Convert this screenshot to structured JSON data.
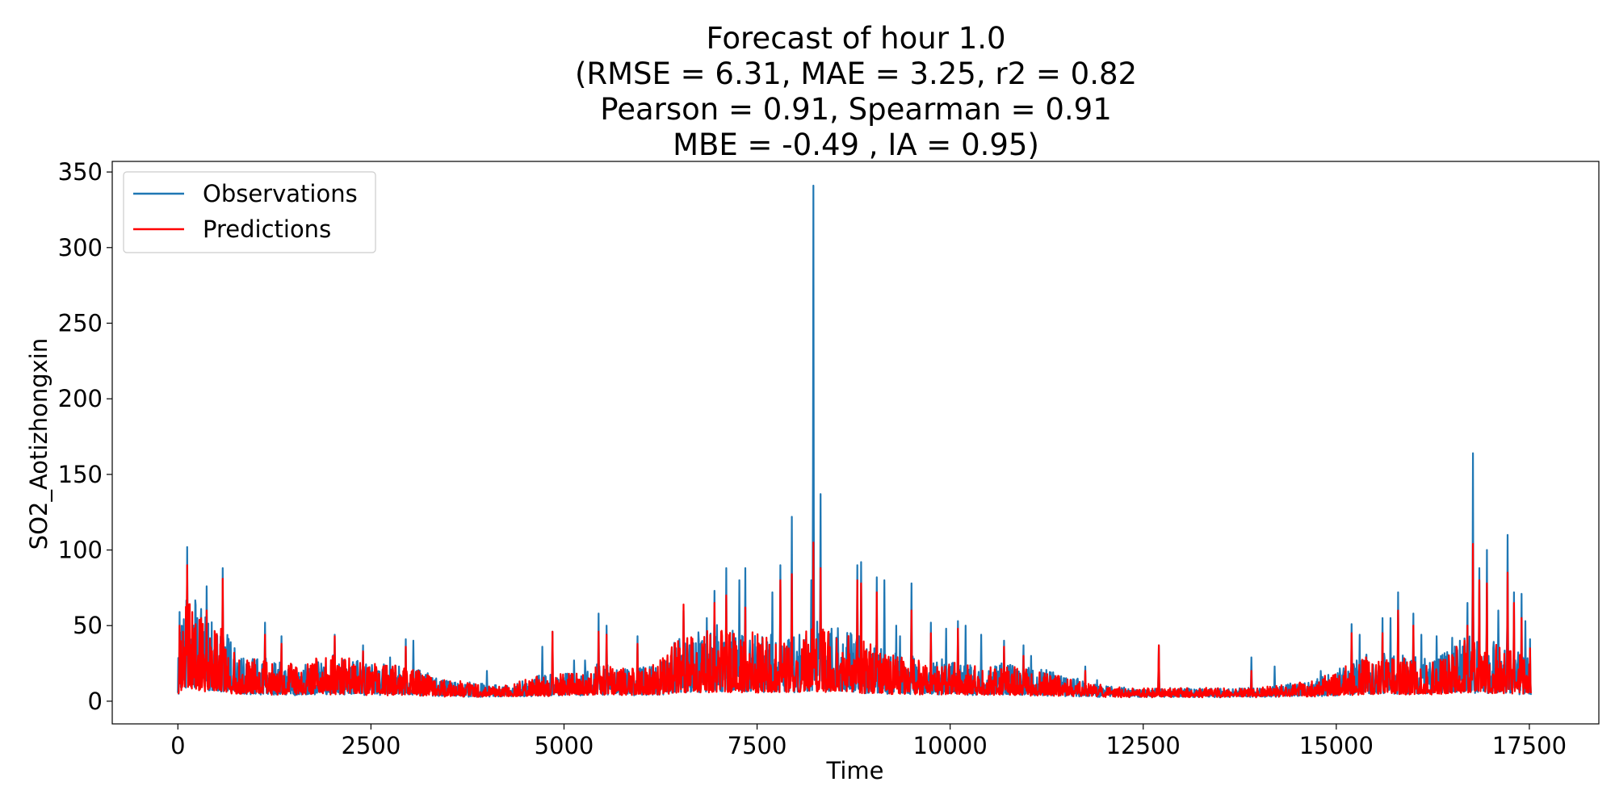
{
  "chart_data": {
    "type": "line",
    "title_lines": [
      "Forecast of hour 1.0",
      "(RMSE = 6.31, MAE = 3.25, r2 = 0.82",
      "Pearson = 0.91, Spearman = 0.91",
      "MBE = -0.49 , IA = 0.95)"
    ],
    "xlabel": "Time",
    "ylabel": "SO2_Aotizhongxin",
    "xlim": [
      -850,
      18400
    ],
    "ylim": [
      -15,
      357
    ],
    "x_ticks": [
      0,
      2500,
      5000,
      7500,
      10000,
      12500,
      15000,
      17500
    ],
    "x_tick_labels": [
      "0",
      "2500",
      "5000",
      "7500",
      "10000",
      "12500",
      "15000",
      "17500"
    ],
    "y_ticks": [
      0,
      50,
      100,
      150,
      200,
      250,
      300,
      350
    ],
    "y_tick_labels": [
      "0",
      "50",
      "100",
      "150",
      "200",
      "250",
      "300",
      "350"
    ],
    "grid": false,
    "legend_position": "top-left",
    "x_range": [
      0,
      17520
    ],
    "series": [
      {
        "name": "Observations",
        "color": "#1f77b4",
        "profile": [
          [
            0,
            15
          ],
          [
            100,
            40
          ],
          [
            400,
            28
          ],
          [
            600,
            25
          ],
          [
            800,
            15
          ],
          [
            1200,
            14
          ],
          [
            1600,
            12
          ],
          [
            2000,
            16
          ],
          [
            2500,
            12
          ],
          [
            3000,
            12
          ],
          [
            3400,
            6
          ],
          [
            3800,
            5
          ],
          [
            4300,
            4
          ],
          [
            4700,
            8
          ],
          [
            5000,
            8
          ],
          [
            5400,
            12
          ],
          [
            5800,
            10
          ],
          [
            6200,
            12
          ],
          [
            6500,
            22
          ],
          [
            7000,
            26
          ],
          [
            7500,
            24
          ],
          [
            8000,
            22
          ],
          [
            8300,
            28
          ],
          [
            8800,
            22
          ],
          [
            9300,
            16
          ],
          [
            9800,
            14
          ],
          [
            10300,
            12
          ],
          [
            10800,
            12
          ],
          [
            11200,
            10
          ],
          [
            11800,
            5
          ],
          [
            12300,
            3
          ],
          [
            12700,
            3
          ],
          [
            13200,
            3
          ],
          [
            13700,
            3
          ],
          [
            14200,
            4
          ],
          [
            14700,
            6
          ],
          [
            15000,
            10
          ],
          [
            15400,
            16
          ],
          [
            15800,
            15
          ],
          [
            16300,
            15
          ],
          [
            16700,
            22
          ],
          [
            17100,
            20
          ],
          [
            17520,
            14
          ]
        ],
        "peaks": [
          [
            20,
            59
          ],
          [
            120,
            102
          ],
          [
            200,
            50
          ],
          [
            250,
            55
          ],
          [
            300,
            61
          ],
          [
            370,
            76
          ],
          [
            580,
            88
          ],
          [
            1130,
            52
          ],
          [
            1340,
            43
          ],
          [
            2030,
            44
          ],
          [
            2400,
            37
          ],
          [
            2750,
            29
          ],
          [
            2950,
            41
          ],
          [
            3050,
            40
          ],
          [
            4000,
            20
          ],
          [
            4720,
            36
          ],
          [
            4850,
            46
          ],
          [
            5130,
            27
          ],
          [
            5270,
            27
          ],
          [
            5450,
            58
          ],
          [
            5550,
            50
          ],
          [
            5950,
            43
          ],
          [
            6250,
            25
          ],
          [
            6550,
            60
          ],
          [
            6850,
            55
          ],
          [
            6950,
            73
          ],
          [
            7100,
            88
          ],
          [
            7270,
            80
          ],
          [
            7350,
            88
          ],
          [
            7700,
            72
          ],
          [
            7800,
            90
          ],
          [
            7950,
            122
          ],
          [
            8050,
            44
          ],
          [
            8200,
            80
          ],
          [
            8230,
            341
          ],
          [
            8320,
            137
          ],
          [
            8500,
            20
          ],
          [
            8800,
            90
          ],
          [
            8850,
            92
          ],
          [
            9050,
            82
          ],
          [
            9150,
            80
          ],
          [
            9300,
            50
          ],
          [
            9350,
            43
          ],
          [
            9500,
            78
          ],
          [
            9750,
            52
          ],
          [
            9950,
            48
          ],
          [
            10100,
            53
          ],
          [
            10200,
            50
          ],
          [
            10400,
            44
          ],
          [
            10700,
            40
          ],
          [
            10950,
            37
          ],
          [
            11050,
            30
          ],
          [
            11400,
            15
          ],
          [
            11650,
            15
          ],
          [
            11750,
            23
          ],
          [
            11900,
            14
          ],
          [
            12700,
            37
          ],
          [
            13100,
            8
          ],
          [
            13900,
            29
          ],
          [
            14200,
            23
          ],
          [
            14800,
            20
          ],
          [
            15200,
            51
          ],
          [
            15300,
            44
          ],
          [
            15600,
            55
          ],
          [
            15700,
            55
          ],
          [
            15800,
            72
          ],
          [
            16000,
            58
          ],
          [
            16100,
            44
          ],
          [
            16300,
            43
          ],
          [
            16500,
            42
          ],
          [
            16600,
            40
          ],
          [
            16700,
            65
          ],
          [
            16770,
            164
          ],
          [
            16850,
            88
          ],
          [
            16950,
            100
          ],
          [
            17100,
            60
          ],
          [
            17220,
            110
          ],
          [
            17300,
            72
          ],
          [
            17400,
            71
          ],
          [
            17450,
            53
          ],
          [
            17510,
            41
          ]
        ]
      },
      {
        "name": "Predictions",
        "color": "#ff0000",
        "profile": [
          [
            0,
            14
          ],
          [
            100,
            38
          ],
          [
            400,
            26
          ],
          [
            600,
            24
          ],
          [
            800,
            14
          ],
          [
            1200,
            13
          ],
          [
            1600,
            12
          ],
          [
            2000,
            15
          ],
          [
            2500,
            12
          ],
          [
            3000,
            11
          ],
          [
            3400,
            6
          ],
          [
            3800,
            5
          ],
          [
            4300,
            4
          ],
          [
            4700,
            8
          ],
          [
            5000,
            8
          ],
          [
            5400,
            12
          ],
          [
            5800,
            10
          ],
          [
            6200,
            12
          ],
          [
            6500,
            21
          ],
          [
            7000,
            25
          ],
          [
            7500,
            23
          ],
          [
            8000,
            21
          ],
          [
            8300,
            26
          ],
          [
            8800,
            21
          ],
          [
            9300,
            15
          ],
          [
            9800,
            13
          ],
          [
            10300,
            12
          ],
          [
            10800,
            11
          ],
          [
            11200,
            9
          ],
          [
            11800,
            5
          ],
          [
            12300,
            3
          ],
          [
            12700,
            3
          ],
          [
            13200,
            3
          ],
          [
            13700,
            3
          ],
          [
            14200,
            4
          ],
          [
            14700,
            6
          ],
          [
            15000,
            10
          ],
          [
            15400,
            15
          ],
          [
            15800,
            14
          ],
          [
            16300,
            14
          ],
          [
            16700,
            21
          ],
          [
            17100,
            19
          ],
          [
            17520,
            13
          ]
        ],
        "peaks": [
          [
            20,
            50
          ],
          [
            120,
            90
          ],
          [
            200,
            45
          ],
          [
            300,
            55
          ],
          [
            370,
            60
          ],
          [
            580,
            81
          ],
          [
            1130,
            44
          ],
          [
            1340,
            38
          ],
          [
            2030,
            43
          ],
          [
            2400,
            33
          ],
          [
            2950,
            36
          ],
          [
            4850,
            46
          ],
          [
            5450,
            46
          ],
          [
            5550,
            44
          ],
          [
            5950,
            38
          ],
          [
            6550,
            64
          ],
          [
            6950,
            65
          ],
          [
            7100,
            70
          ],
          [
            7350,
            62
          ],
          [
            7800,
            80
          ],
          [
            7950,
            84
          ],
          [
            8230,
            105
          ],
          [
            8320,
            88
          ],
          [
            8800,
            80
          ],
          [
            8850,
            78
          ],
          [
            9050,
            72
          ],
          [
            9500,
            60
          ],
          [
            9750,
            45
          ],
          [
            10100,
            48
          ],
          [
            10700,
            36
          ],
          [
            10950,
            30
          ],
          [
            11750,
            20
          ],
          [
            12700,
            37
          ],
          [
            13900,
            20
          ],
          [
            15200,
            45
          ],
          [
            15600,
            45
          ],
          [
            15800,
            60
          ],
          [
            16000,
            50
          ],
          [
            16700,
            50
          ],
          [
            16770,
            104
          ],
          [
            16850,
            80
          ],
          [
            16950,
            78
          ],
          [
            17220,
            85
          ],
          [
            17300,
            65
          ],
          [
            17400,
            55
          ],
          [
            17510,
            35
          ]
        ]
      }
    ]
  }
}
